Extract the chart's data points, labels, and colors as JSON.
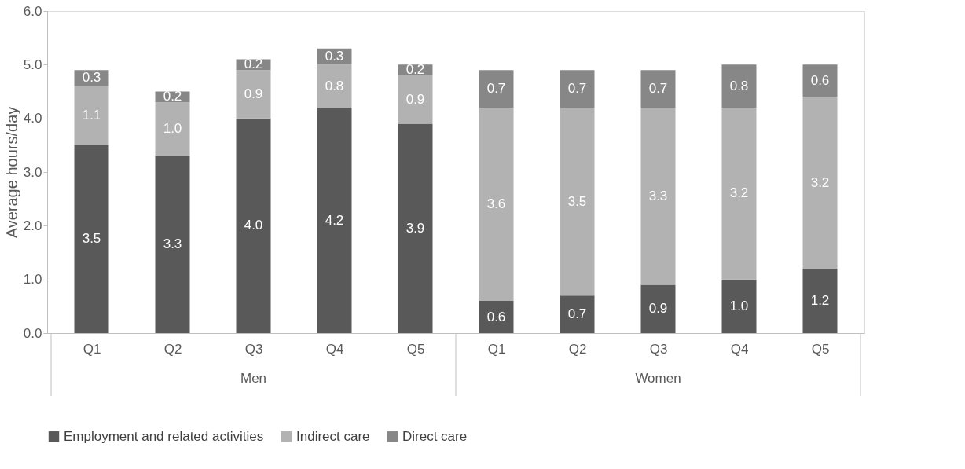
{
  "chart_data": {
    "type": "bar",
    "stacked": true,
    "ylabel": "Average hours/day",
    "categories": [
      "Q1",
      "Q2",
      "Q3",
      "Q4",
      "Q5",
      "Q1",
      "Q2",
      "Q3",
      "Q4",
      "Q5"
    ],
    "annotations": [
      "Men",
      "Women"
    ],
    "series": [
      {
        "name": "Employment and related activities",
        "color": "#595959",
        "values": [
          3.5,
          3.3,
          4.0,
          4.2,
          3.9,
          0.6,
          0.7,
          0.9,
          1.0,
          1.2
        ],
        "value_labels": [
          "3.5",
          "3.3",
          "4.0",
          "4.2",
          "3.9",
          "0.6",
          "0.7",
          "0.9",
          "1.0",
          "1.2"
        ]
      },
      {
        "name": "Indirect care",
        "color": "#b2b2b2",
        "values": [
          1.1,
          1.0,
          0.9,
          0.8,
          0.9,
          3.6,
          3.5,
          3.3,
          3.2,
          3.2
        ],
        "value_labels": [
          "1.1",
          "1.0",
          "0.9",
          "0.8",
          "0.9",
          "3.6",
          "3.5",
          "3.3",
          "3.2",
          "3.2"
        ]
      },
      {
        "name": "Direct care",
        "color": "#878787",
        "values": [
          0.3,
          0.2,
          0.2,
          0.3,
          0.2,
          0.7,
          0.7,
          0.7,
          0.8,
          0.6
        ],
        "value_labels": [
          "0.3",
          "0.2",
          "0.2",
          "0.3",
          "0.2",
          "0.7",
          "0.7",
          "0.7",
          "0.8",
          "0.6"
        ]
      }
    ],
    "ylim": [
      0,
      6
    ],
    "yticks": [
      {
        "value": 0,
        "label": "0.0"
      },
      {
        "value": 1,
        "label": "1.0"
      },
      {
        "value": 2,
        "label": "2.0"
      },
      {
        "value": 3,
        "label": "3.0"
      },
      {
        "value": 4,
        "label": "4.0"
      },
      {
        "value": 5,
        "label": "5.0"
      },
      {
        "value": 6,
        "label": "6.0"
      }
    ],
    "grid": false,
    "legend": "bottom"
  }
}
